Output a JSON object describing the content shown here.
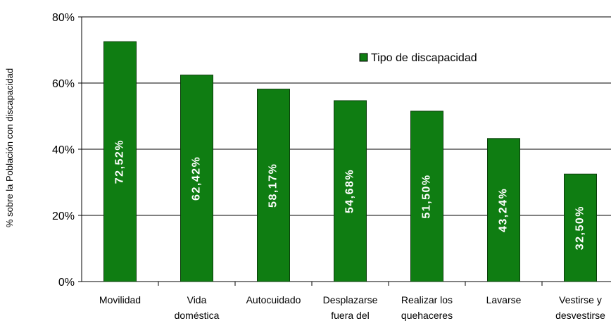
{
  "chart_data": {
    "type": "bar",
    "y_label": "% sobre la Población  con discapacidad",
    "categories": [
      "Movilidad",
      "Vida\ndoméstica",
      "Autocuidado",
      "Desplazarse\nfuera del",
      "Realizar los\nquehaceres",
      "Lavarse",
      "Vestirse y\ndesvestirse"
    ],
    "series": [
      {
        "name": "Tipo de discapacidad",
        "color": "#0f7d12",
        "values": [
          72.52,
          62.42,
          58.17,
          54.68,
          51.5,
          43.24,
          32.5
        ],
        "value_labels": [
          "72,52%",
          "62,42%",
          "58,17%",
          "54,68%",
          "51,50%",
          "43,24%",
          "32,50%"
        ]
      }
    ],
    "ylim": [
      0,
      80
    ],
    "yticks": [
      {
        "value": 0,
        "label": "0%"
      },
      {
        "value": 20,
        "label": "20%"
      },
      {
        "value": 40,
        "label": "40%"
      },
      {
        "value": 60,
        "label": "60%"
      },
      {
        "value": 80,
        "label": "80%"
      }
    ],
    "grid": true,
    "legend": "top-right"
  }
}
